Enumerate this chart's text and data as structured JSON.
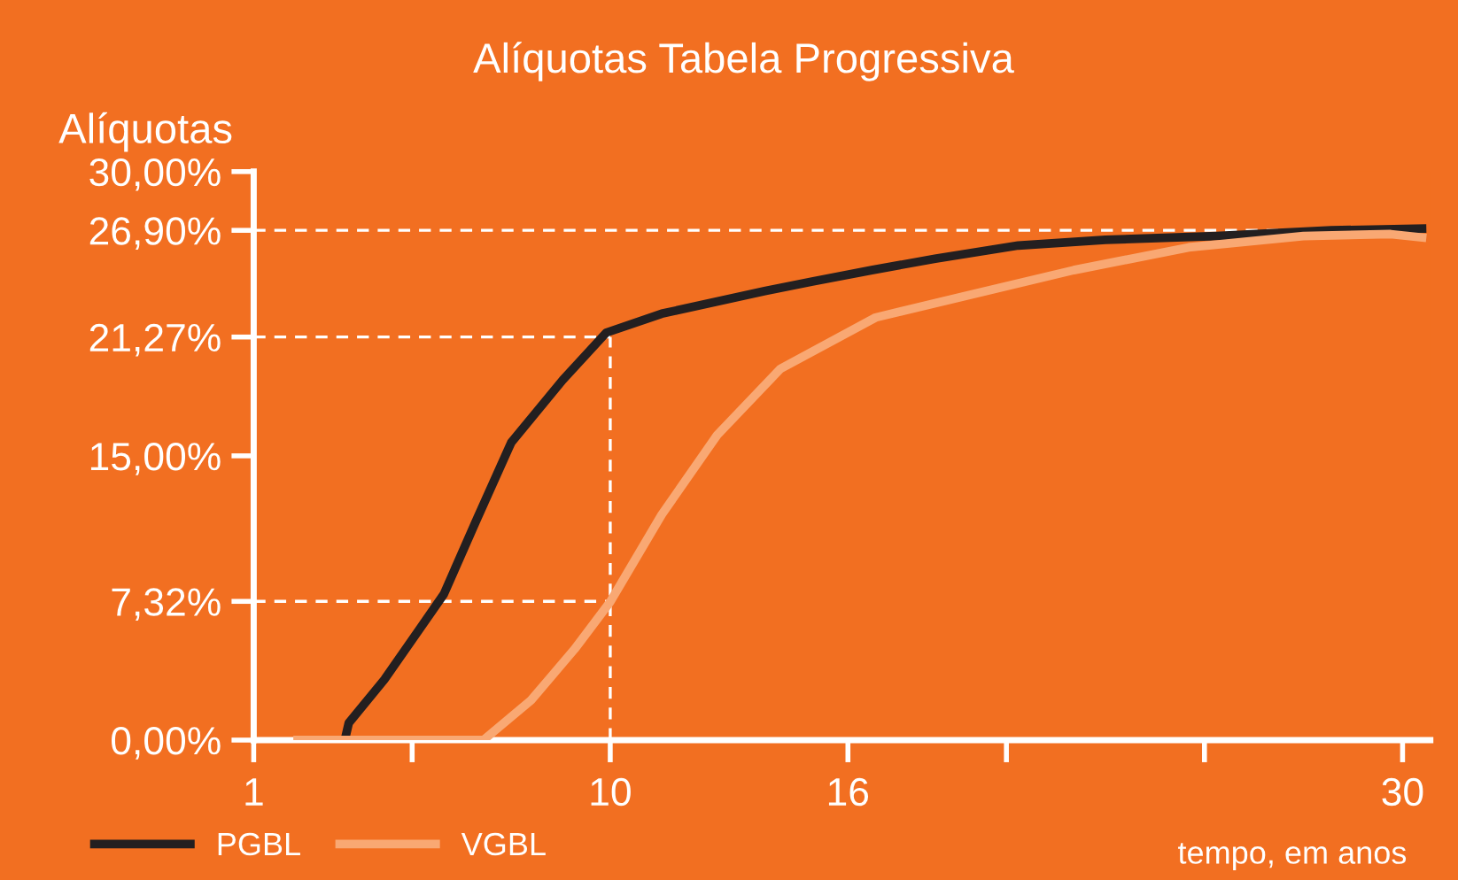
{
  "chart_data": {
    "type": "line",
    "title": "Alíquotas Tabela Progressiva",
    "ylabel": "Alíquotas",
    "xlabel": "tempo, em anos",
    "xlim": [
      1,
      30.7
    ],
    "xticks": [
      1,
      {
        "value": 5,
        "label": null
      },
      10,
      16,
      {
        "value": 20,
        "label": null
      },
      {
        "value": 25,
        "label": null
      },
      30
    ],
    "ylim": [
      0,
      30
    ],
    "yticks": [
      {
        "value": 0,
        "label": "0,00%"
      },
      {
        "value": 7.32,
        "label": "7,32%"
      },
      {
        "value": 15,
        "label": "15,00%"
      },
      {
        "value": 21.27,
        "label": "21,27%"
      },
      {
        "value": 26.9,
        "label": "26,90%"
      },
      {
        "value": 30,
        "label": "30,00%"
      }
    ],
    "series": [
      {
        "name": "PGBL",
        "color": "#231f20",
        "x": [
          3.3,
          3.4,
          4.3,
          5.2,
          5.8,
          6.6,
          7.5,
          8.8,
          9.9,
          11.3,
          13.9,
          15.1,
          16.6,
          18.2,
          20.3,
          22.5,
          25.3,
          28.2,
          30.6
        ],
        "values": [
          0,
          0.9,
          3.2,
          5.9,
          7.7,
          11.5,
          15.7,
          19.0,
          21.5,
          22.5,
          23.7,
          24.2,
          24.8,
          25.4,
          26.1,
          26.4,
          26.6,
          26.9,
          27.0
        ]
      },
      {
        "name": "VGBL",
        "color": "#f9a873",
        "x": [
          2.0,
          6.8,
          8.0,
          9.1,
          10.0,
          11.3,
          12.7,
          14.3,
          16.7,
          18.9,
          21.7,
          24.6,
          27.5,
          29.7,
          30.6
        ],
        "values": [
          0,
          0,
          2.1,
          4.8,
          7.3,
          11.9,
          16.1,
          19.6,
          22.3,
          23.4,
          24.8,
          26.0,
          26.6,
          26.7,
          26.5
        ]
      }
    ],
    "ref_lines": [
      {
        "axis": "y",
        "value": 26.9,
        "color": "#ffffff",
        "line_style": "dashed"
      },
      {
        "axis": "y",
        "value": 21.27,
        "color": "#ffffff",
        "line_style": "dashed"
      },
      {
        "axis": "y",
        "value": 7.32,
        "color": "#ffffff",
        "line_style": "dashed"
      },
      {
        "axis": "x",
        "value": 10,
        "color": "#ffffff",
        "line_style": "dashed"
      }
    ],
    "legend": "bottom left",
    "grid": false,
    "marker": "none",
    "line_style": "solid"
  }
}
